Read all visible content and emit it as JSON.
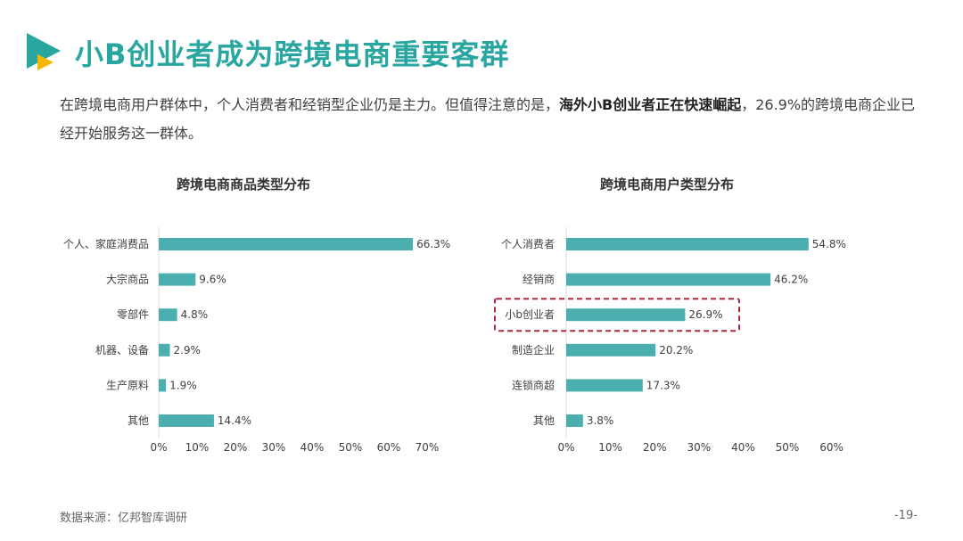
{
  "header": {
    "title": "小B创业者成为跨境电商重要客群"
  },
  "intro": {
    "text_a": "在跨境电商用户群体中，个人消费者和经销型企业仍是主力。但值得注意的是，",
    "text_bold": "海外小B创业者正在快速崛起",
    "text_b": "，26.9%的跨境电商企业已经开始服务这一群体。"
  },
  "footer": {
    "source": "数据来源：亿邦智库调研",
    "page": "-19-"
  },
  "colors": {
    "bar": "#4aafae",
    "title": "#2aa6a0",
    "highlight": "#b0263c",
    "logo_teal": "#2aa6a0",
    "logo_yellow": "#f5b800"
  },
  "chart_data": [
    {
      "type": "bar",
      "orientation": "horizontal",
      "title": "跨境电商商品类型分布",
      "categories": [
        "个人、家庭消费品",
        "大宗商品",
        "零部件",
        "机器、设备",
        "生产原料",
        "其他"
      ],
      "values": [
        66.3,
        9.6,
        4.8,
        2.9,
        1.9,
        14.4
      ],
      "value_labels": [
        "66.3%",
        "9.6%",
        "4.8%",
        "2.9%",
        "1.9%",
        "14.4%"
      ],
      "xlim": [
        0,
        70
      ],
      "xticks": [
        "0%",
        "10%",
        "20%",
        "30%",
        "40%",
        "50%",
        "60%",
        "70%"
      ],
      "grid": false
    },
    {
      "type": "bar",
      "orientation": "horizontal",
      "title": "跨境电商用户类型分布",
      "categories": [
        "个人消费者",
        "经销商",
        "小b创业者",
        "制造企业",
        "连锁商超",
        "其他"
      ],
      "values": [
        54.8,
        46.2,
        26.9,
        20.2,
        17.3,
        3.8
      ],
      "value_labels": [
        "54.8%",
        "46.2%",
        "26.9%",
        "20.2%",
        "17.3%",
        "3.8%"
      ],
      "xlim": [
        0,
        60
      ],
      "xticks": [
        "0%",
        "10%",
        "20%",
        "30%",
        "40%",
        "50%",
        "60%"
      ],
      "highlight_category": "小b创业者",
      "grid": false
    }
  ]
}
